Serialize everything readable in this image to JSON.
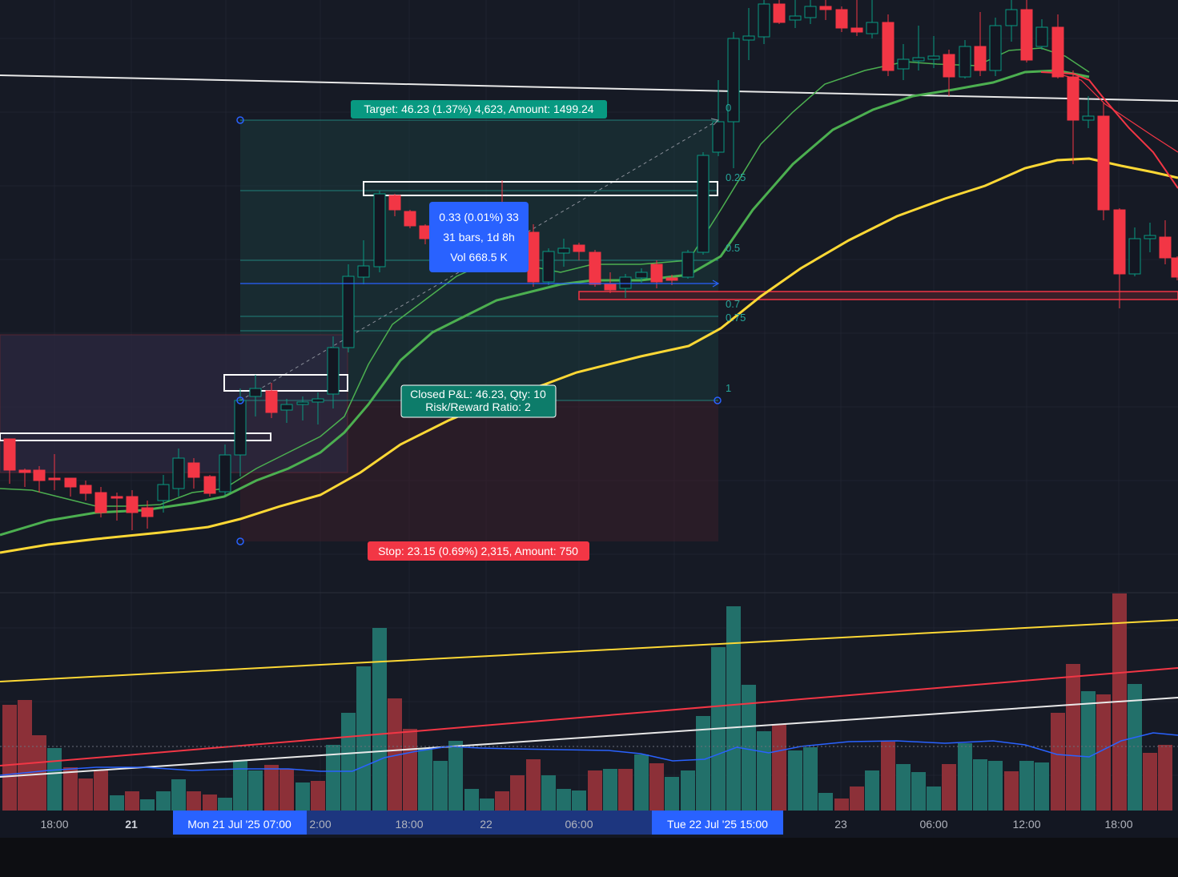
{
  "chart_data": {
    "type": "candlestick",
    "title": "",
    "colors": {
      "background": "#161a25",
      "grid": "#1e222d",
      "up": "#089981",
      "down": "#f23645",
      "ema_fast": "#4caf50",
      "ema_slow": "#4caf50",
      "ema_long": "#fdd835",
      "ema_red": "#f23645",
      "volume_up": "#22706a",
      "volume_down": "#8c3038",
      "target_label": "#089981",
      "stop_label": "#f23645",
      "measure_box": "#2962ff",
      "axis_highlight": "#2962ff"
    },
    "candles": [
      {
        "o": 0.0,
        "h": 0.0,
        "l": 0.0,
        "c": 0.0
      }
    ],
    "position_tool": {
      "target_label": "Target: 46.23 (1.37%) 4,623, Amount: 1499.24",
      "stop_label": "Stop: 23.15 (0.69%) 2,315, Amount: 750",
      "closed_label_line1": "Closed P&L: 46.23, Qty: 10",
      "closed_label_line2": "Risk/Reward Ratio: 2"
    },
    "fib_levels": [
      "0",
      "0.25",
      "0.5",
      "0.7",
      "0.75",
      "1"
    ],
    "measure": {
      "line1": "0.33 (0.01%) 33",
      "line2": "31 bars, 1d 8h",
      "line3": "Vol 668.5 K"
    },
    "x_axis": {
      "ticks": [
        "18:00",
        "21",
        "2:00",
        "18:00",
        "22",
        "06:00",
        "23",
        "06:00",
        "12:00",
        "18:00"
      ],
      "highlight_left": "Mon 21 Jul '25   07:00",
      "highlight_right": "Tue 22 Jul '25   15:00"
    }
  }
}
